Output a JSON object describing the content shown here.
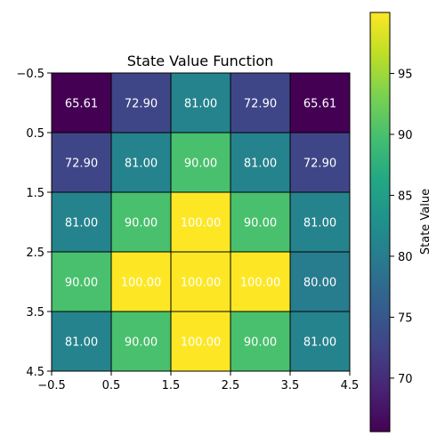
{
  "chart_data": {
    "type": "heatmap",
    "title": "State Value Function",
    "xlabel": "",
    "ylabel": "",
    "x_ticks": [
      "−0.5",
      "0.5",
      "1.5",
      "2.5",
      "3.5",
      "4.5"
    ],
    "y_ticks": [
      "−0.5",
      "0.5",
      "1.5",
      "2.5",
      "3.5",
      "4.5"
    ],
    "xlim": [
      -0.5,
      4.5
    ],
    "ylim": [
      4.5,
      -0.5
    ],
    "values": [
      [
        65.61,
        72.9,
        81.0,
        72.9,
        65.61
      ],
      [
        72.9,
        81.0,
        90.0,
        81.0,
        72.9
      ],
      [
        81.0,
        90.0,
        100.0,
        90.0,
        81.0
      ],
      [
        90.0,
        100.0,
        100.0,
        100.0,
        80.0
      ],
      [
        81.0,
        90.0,
        100.0,
        90.0,
        81.0
      ]
    ],
    "cell_labels": [
      [
        "65.61",
        "72.90",
        "81.00",
        "72.90",
        "65.61"
      ],
      [
        "72.90",
        "81.00",
        "90.00",
        "81.00",
        "72.90"
      ],
      [
        "81.00",
        "90.00",
        "100.00",
        "90.00",
        "81.00"
      ],
      [
        "90.00",
        "100.00",
        "100.00",
        "100.00",
        "80.00"
      ],
      [
        "81.00",
        "90.00",
        "100.00",
        "90.00",
        "81.00"
      ]
    ],
    "colormap": "viridis",
    "value_range": [
      65.61,
      100.0
    ],
    "cell_edge_color": "#000000",
    "cell_label_color": "#ffffff",
    "colorbar": {
      "label": "State Value",
      "ticks": [
        70,
        75,
        80,
        85,
        90,
        95
      ],
      "tick_labels": [
        "70",
        "75",
        "80",
        "85",
        "90",
        "95"
      ]
    }
  }
}
